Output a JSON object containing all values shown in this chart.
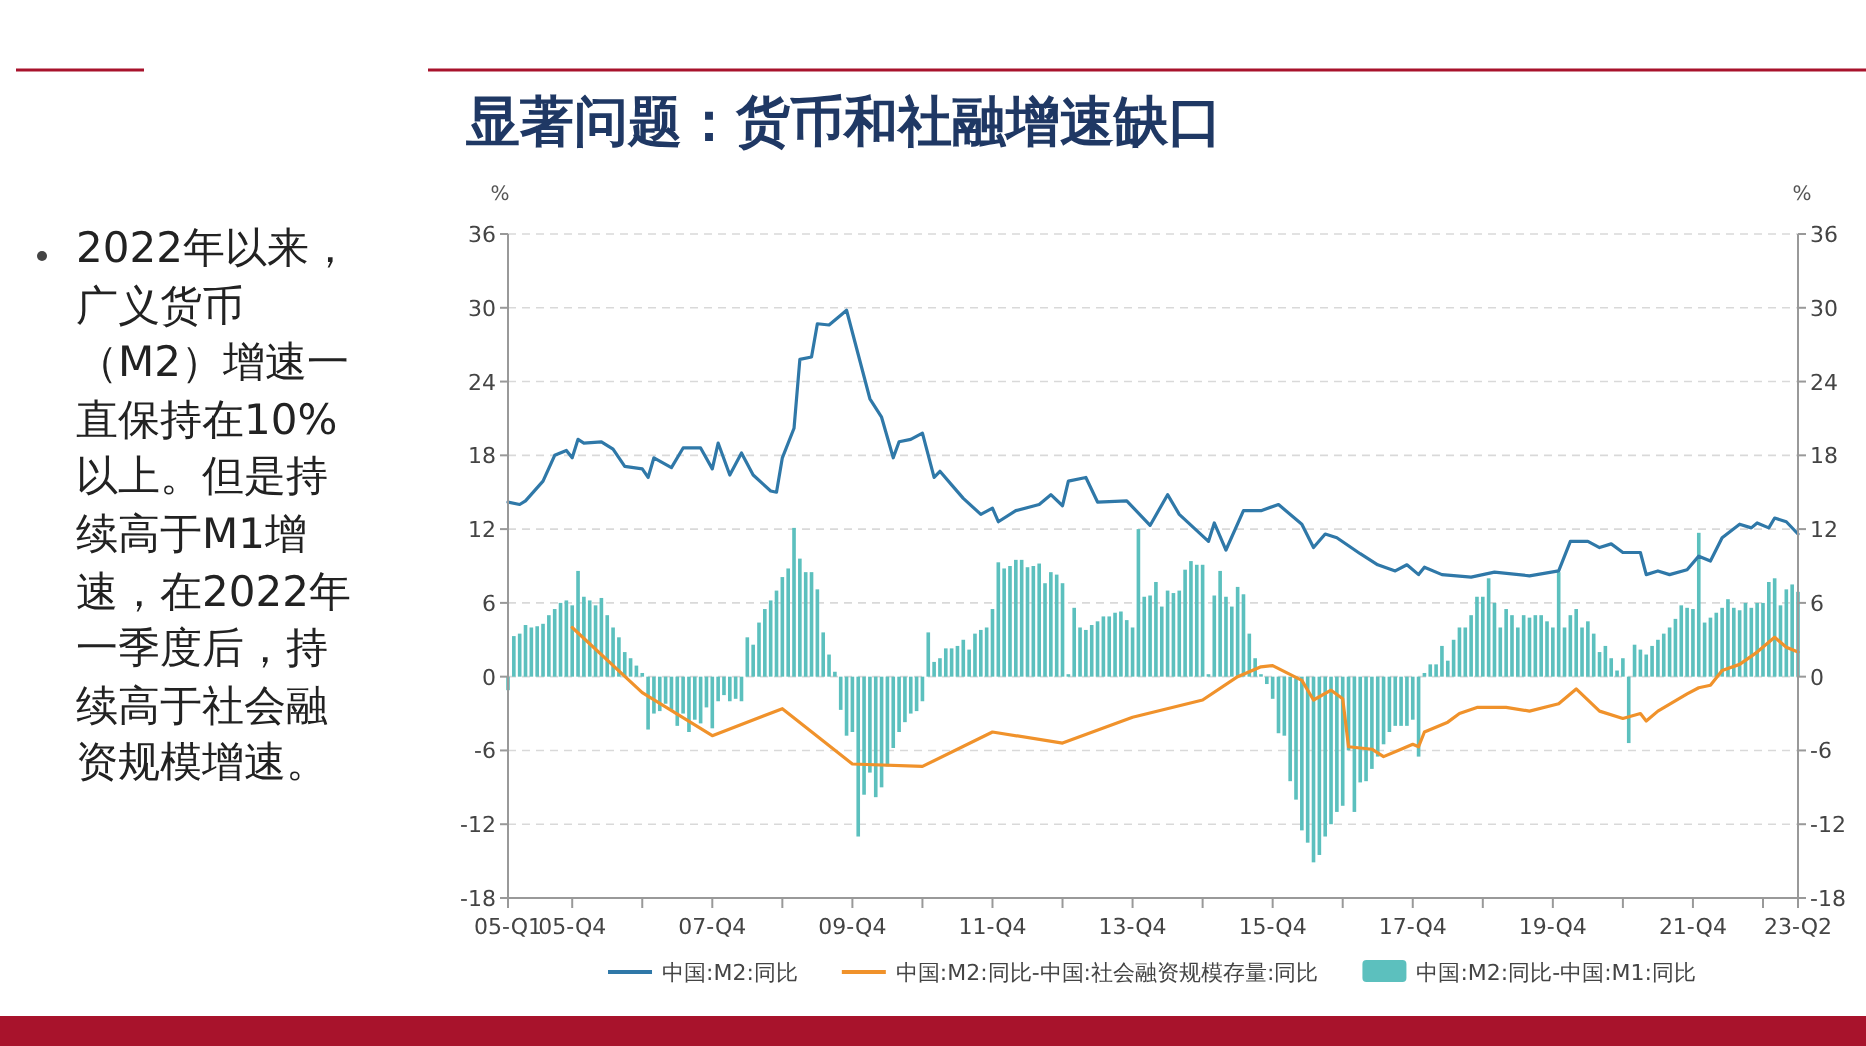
{
  "chart_data": {
    "type": "line",
    "title": "显著问题：货币和社融增速缺口",
    "annotations": [
      "2022年以来，广义货币（M2）增速一直保持在10%以上。但是持续高于M1增速，在2022年一季度后，持续高于社会融资规模增速。"
    ],
    "ylabel": "%",
    "y2label": "%",
    "xlim": [
      "2005-01",
      "2023-06"
    ],
    "xticks": [
      {
        "value": "2005-01",
        "label": "05-Q1"
      },
      {
        "value": "2005-12",
        "label": "05-Q4"
      },
      {
        "value": "2006-12",
        "label": null
      },
      {
        "value": "2007-12",
        "label": "07-Q4"
      },
      {
        "value": "2008-12",
        "label": null
      },
      {
        "value": "2009-12",
        "label": "09-Q4"
      },
      {
        "value": "2010-12",
        "label": null
      },
      {
        "value": "2011-12",
        "label": "11-Q4"
      },
      {
        "value": "2012-12",
        "label": null
      },
      {
        "value": "2013-12",
        "label": "13-Q4"
      },
      {
        "value": "2014-12",
        "label": null
      },
      {
        "value": "2015-12",
        "label": "15-Q4"
      },
      {
        "value": "2016-12",
        "label": null
      },
      {
        "value": "2017-12",
        "label": "17-Q4"
      },
      {
        "value": "2018-12",
        "label": null
      },
      {
        "value": "2019-12",
        "label": "19-Q4"
      },
      {
        "value": "2020-12",
        "label": null
      },
      {
        "value": "2021-12",
        "label": "21-Q4"
      },
      {
        "value": "2022-12",
        "label": null
      },
      {
        "value": "2023-06",
        "label": "23-Q2"
      }
    ],
    "ylim": [
      -18,
      36
    ],
    "yticks": [
      -18,
      -12,
      -6,
      0,
      6,
      12,
      18,
      24,
      30,
      36
    ],
    "y2lim": [
      -18,
      36
    ],
    "y2ticks": [
      -18,
      -12,
      -6,
      0,
      6,
      12,
      18,
      24,
      30,
      36
    ],
    "grid": "y",
    "legend": "bottom",
    "series": [
      {
        "name": "中国:M2:同比",
        "color": "#2f78a8",
        "x": [
          "2005-01",
          "2005-03",
          "2005-04",
          "2005-07",
          "2005-09",
          "2005-11",
          "2005-12",
          "2006-01",
          "2006-02",
          "2006-05",
          "2006-07",
          "2006-09",
          "2006-12",
          "2007-01",
          "2007-02",
          "2007-05",
          "2007-07",
          "2007-10",
          "2007-12",
          "2008-01",
          "2008-03",
          "2008-05",
          "2008-07",
          "2008-10",
          "2008-11",
          "2008-12",
          "2009-02",
          "2009-03",
          "2009-05",
          "2009-06",
          "2009-08",
          "2009-10",
          "2009-11",
          "2010-01",
          "2010-03",
          "2010-05",
          "2010-07",
          "2010-08",
          "2010-10",
          "2010-12",
          "2011-02",
          "2011-03",
          "2011-05",
          "2011-07",
          "2011-10",
          "2011-12",
          "2012-01",
          "2012-04",
          "2012-08",
          "2012-10",
          "2012-12",
          "2013-01",
          "2013-04",
          "2013-06",
          "2013-11",
          "2014-03",
          "2014-06",
          "2014-08",
          "2015-01",
          "2015-02",
          "2015-04",
          "2015-07",
          "2015-10",
          "2016-01",
          "2016-05",
          "2016-07",
          "2016-09",
          "2016-11",
          "2017-03",
          "2017-06",
          "2017-09",
          "2017-11",
          "2018-01",
          "2018-02",
          "2018-05",
          "2018-10",
          "2019-02",
          "2019-08",
          "2020-01",
          "2020-03",
          "2020-06",
          "2020-08",
          "2020-10",
          "2020-12",
          "2021-03",
          "2021-04",
          "2021-06",
          "2021-08",
          "2021-11",
          "2022-01",
          "2022-03",
          "2022-05",
          "2022-08",
          "2022-10",
          "2022-11",
          "2023-01",
          "2023-02",
          "2023-04",
          "2023-06"
        ],
        "values": [
          14.2,
          14.0,
          14.3,
          15.9,
          18.0,
          18.4,
          17.8,
          19.3,
          19.0,
          19.1,
          18.5,
          17.1,
          16.9,
          16.2,
          17.8,
          17.0,
          18.6,
          18.6,
          16.9,
          19.0,
          16.4,
          18.2,
          16.4,
          15.1,
          15.0,
          17.8,
          20.2,
          25.8,
          26.0,
          28.7,
          28.6,
          29.4,
          29.8,
          26.2,
          22.6,
          21.1,
          17.8,
          19.1,
          19.3,
          19.8,
          16.2,
          16.7,
          15.6,
          14.5,
          13.2,
          13.7,
          12.6,
          13.5,
          14.0,
          14.8,
          13.9,
          15.9,
          16.2,
          14.2,
          14.3,
          12.3,
          14.8,
          13.2,
          11.0,
          12.5,
          10.3,
          13.5,
          13.5,
          14.0,
          12.4,
          10.5,
          11.6,
          11.3,
          10.0,
          9.1,
          8.6,
          9.1,
          8.3,
          8.9,
          8.3,
          8.1,
          8.5,
          8.2,
          8.6,
          11.0,
          11.0,
          10.5,
          10.8,
          10.1,
          10.1,
          8.3,
          8.6,
          8.3,
          8.7,
          9.8,
          9.4,
          11.3,
          12.4,
          12.1,
          12.5,
          12.1,
          12.9,
          12.6,
          11.6
        ]
      },
      {
        "name": "中国:M2:同比-中国:社会融资规模存量:同比",
        "color": "#f0922b",
        "x": [
          "2005-12",
          "2006-12",
          "2007-12",
          "2008-12",
          "2009-12",
          "2010-12",
          "2011-12",
          "2012-12",
          "2013-12",
          "2014-12",
          "2015-06",
          "2015-10",
          "2015-12",
          "2016-05",
          "2016-07",
          "2016-10",
          "2016-12",
          "2017-01",
          "2017-05",
          "2017-07",
          "2017-10",
          "2017-12",
          "2018-01",
          "2018-02",
          "2018-06",
          "2018-08",
          "2018-11",
          "2019-04",
          "2019-08",
          "2020-01",
          "2020-04",
          "2020-08",
          "2020-12",
          "2021-03",
          "2021-04",
          "2021-06",
          "2021-11",
          "2022-01",
          "2022-03",
          "2022-05",
          "2022-08",
          "2022-11",
          "2023-02",
          "2023-04",
          "2023-06"
        ],
        "values": [
          4.0,
          -1.3,
          -4.8,
          -2.6,
          -7.1,
          -7.3,
          -4.5,
          -5.4,
          -3.3,
          -1.9,
          0.0,
          0.8,
          0.9,
          -0.3,
          -1.9,
          -1.1,
          -1.8,
          -5.7,
          -5.9,
          -6.5,
          -5.9,
          -5.5,
          -5.7,
          -4.5,
          -3.7,
          -3.0,
          -2.5,
          -2.5,
          -2.8,
          -2.2,
          -1.0,
          -2.8,
          -3.4,
          -3.0,
          -3.6,
          -2.8,
          -1.4,
          -0.9,
          -0.7,
          0.5,
          1.0,
          2.0,
          3.2,
          2.4,
          2.0
        ]
      },
      {
        "name": "中国:M2:同比-中国:M1:同比",
        "type": "bar",
        "color": "#5cc0be",
        "x": [
          "2005-01",
          "2005-02",
          "2005-03",
          "2005-04",
          "2005-05",
          "2005-06",
          "2005-07",
          "2005-08",
          "2005-09",
          "2005-10",
          "2005-11",
          "2005-12",
          "2006-01",
          "2006-02",
          "2006-03",
          "2006-04",
          "2006-05",
          "2006-06",
          "2006-07",
          "2006-08",
          "2006-09",
          "2006-10",
          "2006-11",
          "2006-12",
          "2007-01",
          "2007-02",
          "2007-03",
          "2007-04",
          "2007-05",
          "2007-06",
          "2007-07",
          "2007-08",
          "2007-09",
          "2007-10",
          "2007-11",
          "2007-12",
          "2008-01",
          "2008-02",
          "2008-03",
          "2008-04",
          "2008-05",
          "2008-06",
          "2008-07",
          "2008-08",
          "2008-09",
          "2008-10",
          "2008-11",
          "2008-12",
          "2009-01",
          "2009-02",
          "2009-03",
          "2009-04",
          "2009-05",
          "2009-06",
          "2009-07",
          "2009-08",
          "2009-09",
          "2009-10",
          "2009-11",
          "2009-12",
          "2010-01",
          "2010-02",
          "2010-03",
          "2010-04",
          "2010-05",
          "2010-06",
          "2010-07",
          "2010-08",
          "2010-09",
          "2010-10",
          "2010-11",
          "2010-12",
          "2011-01",
          "2011-02",
          "2011-03",
          "2011-04",
          "2011-05",
          "2011-06",
          "2011-07",
          "2011-08",
          "2011-09",
          "2011-10",
          "2011-11",
          "2011-12",
          "2012-01",
          "2012-02",
          "2012-03",
          "2012-04",
          "2012-05",
          "2012-06",
          "2012-07",
          "2012-08",
          "2012-09",
          "2012-10",
          "2012-11",
          "2012-12",
          "2013-01",
          "2013-02",
          "2013-03",
          "2013-04",
          "2013-05",
          "2013-06",
          "2013-07",
          "2013-08",
          "2013-09",
          "2013-10",
          "2013-11",
          "2013-12",
          "2014-01",
          "2014-02",
          "2014-03",
          "2014-04",
          "2014-05",
          "2014-06",
          "2014-07",
          "2014-08",
          "2014-09",
          "2014-10",
          "2014-11",
          "2014-12",
          "2015-01",
          "2015-02",
          "2015-03",
          "2015-04",
          "2015-05",
          "2015-06",
          "2015-07",
          "2015-08",
          "2015-09",
          "2015-10",
          "2015-11",
          "2015-12",
          "2016-01",
          "2016-02",
          "2016-03",
          "2016-04",
          "2016-05",
          "2016-06",
          "2016-07",
          "2016-08",
          "2016-09",
          "2016-10",
          "2016-11",
          "2016-12",
          "2017-01",
          "2017-02",
          "2017-03",
          "2017-04",
          "2017-05",
          "2017-06",
          "2017-07",
          "2017-08",
          "2017-09",
          "2017-10",
          "2017-11",
          "2017-12",
          "2018-01",
          "2018-02",
          "2018-03",
          "2018-04",
          "2018-05",
          "2018-06",
          "2018-07",
          "2018-08",
          "2018-09",
          "2018-10",
          "2018-11",
          "2018-12",
          "2019-01",
          "2019-02",
          "2019-03",
          "2019-04",
          "2019-05",
          "2019-06",
          "2019-07",
          "2019-08",
          "2019-09",
          "2019-10",
          "2019-11",
          "2019-12",
          "2020-01",
          "2020-02",
          "2020-03",
          "2020-04",
          "2020-05",
          "2020-06",
          "2020-07",
          "2020-08",
          "2020-09",
          "2020-10",
          "2020-11",
          "2020-12",
          "2021-01",
          "2021-02",
          "2021-03",
          "2021-04",
          "2021-05",
          "2021-06",
          "2021-07",
          "2021-08",
          "2021-09",
          "2021-10",
          "2021-11",
          "2021-12",
          "2022-01",
          "2022-02",
          "2022-03",
          "2022-04",
          "2022-05",
          "2022-06",
          "2022-07",
          "2022-08",
          "2022-09",
          "2022-10",
          "2022-11",
          "2022-12",
          "2023-01",
          "2023-02",
          "2023-03",
          "2023-04",
          "2023-05",
          "2023-06"
        ],
        "values": [
          -1.1,
          3.3,
          3.5,
          4.2,
          4.0,
          4.1,
          4.3,
          5.0,
          5.5,
          6.0,
          6.2,
          5.8,
          8.6,
          6.5,
          6.2,
          5.8,
          6.4,
          5.0,
          4.0,
          3.2,
          2.0,
          1.5,
          0.9,
          0.3,
          -4.3,
          -3.0,
          -2.8,
          -2.2,
          -2.7,
          -4.0,
          -3.0,
          -4.5,
          -3.5,
          -3.8,
          -2.5,
          -4.2,
          -2.0,
          -1.5,
          -2.0,
          -1.8,
          -2.0,
          3.2,
          2.6,
          4.4,
          5.5,
          6.2,
          7.0,
          8.1,
          8.8,
          12.1,
          9.6,
          8.5,
          8.5,
          7.1,
          3.6,
          1.8,
          0.4,
          -2.7,
          -4.8,
          -4.5,
          -13.0,
          -9.6,
          -7.8,
          -9.8,
          -9.0,
          -7.3,
          -5.8,
          -4.5,
          -3.7,
          -3.0,
          -2.8,
          -2.0,
          3.6,
          1.2,
          1.5,
          2.3,
          2.3,
          2.5,
          3.0,
          2.2,
          3.5,
          3.8,
          4.0,
          5.5,
          9.3,
          8.8,
          9.0,
          9.5,
          9.5,
          8.9,
          9.0,
          9.2,
          7.6,
          8.5,
          8.3,
          7.6,
          0.2,
          5.6,
          4.0,
          3.8,
          4.2,
          4.5,
          4.9,
          4.9,
          5.2,
          5.3,
          4.6,
          4.0,
          12.0,
          6.5,
          6.6,
          7.7,
          5.7,
          7.0,
          6.8,
          7.0,
          8.7,
          9.4,
          9.1,
          9.1,
          0.2,
          6.6,
          8.6,
          6.5,
          5.7,
          7.3,
          6.7,
          3.5,
          1.5,
          0.2,
          -0.6,
          -1.8,
          -4.6,
          -4.8,
          -8.5,
          -10.0,
          -12.5,
          -13.5,
          -15.1,
          -14.5,
          -13.0,
          -12.0,
          -11.0,
          -10.5,
          -6.0,
          -11.0,
          -8.6,
          -8.5,
          -7.5,
          -6.5,
          -5.5,
          -4.5,
          -4.0,
          -4.0,
          -4.0,
          -3.5,
          -6.5,
          0.3,
          1.0,
          1.0,
          2.5,
          1.3,
          3.0,
          4.0,
          4.0,
          5.0,
          6.5,
          6.5,
          8.0,
          6.0,
          4.0,
          5.5,
          5.0,
          4.0,
          5.0,
          4.8,
          5.0,
          5.0,
          4.5,
          4.0,
          8.5,
          4.0,
          5.0,
          5.5,
          4.0,
          4.5,
          3.5,
          2.0,
          2.5,
          1.5,
          0.5,
          1.5,
          -5.4,
          2.6,
          2.2,
          1.8,
          2.5,
          3.0,
          3.5,
          4.0,
          4.7,
          5.8,
          5.6,
          5.5,
          11.7,
          4.4,
          4.8,
          5.2,
          5.6,
          6.3,
          5.6,
          5.4,
          6.0,
          5.6,
          6.0,
          6.0,
          7.7,
          8.0,
          5.8,
          7.1,
          7.5,
          6.9
        ]
      }
    ]
  }
}
